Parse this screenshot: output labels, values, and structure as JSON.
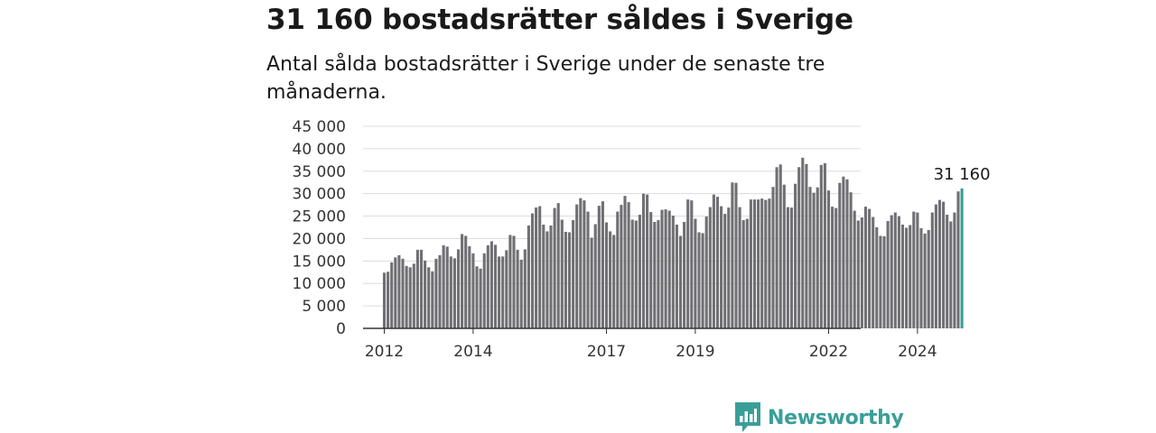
{
  "header": {
    "title": "31 160 bostadsrätter såldes i Sverige",
    "subtitle": "Antal sålda bostadsrätter i Sverige under de senaste tre månaderna."
  },
  "brand": {
    "name": "Newsworthy",
    "icon": "newsworthy-logo-icon",
    "color": "#3a9e98"
  },
  "chart_data": {
    "type": "bar",
    "title": "",
    "xlabel": "",
    "ylabel": "",
    "ylim": [
      0,
      45000
    ],
    "yticks": [
      0,
      5000,
      10000,
      15000,
      20000,
      25000,
      30000,
      35000,
      40000,
      45000
    ],
    "ytick_labels": [
      "0",
      "5 000",
      "10 000",
      "15 000",
      "20 000",
      "25 000",
      "30 000",
      "35 000",
      "40 000",
      "45 000"
    ],
    "x_start": "2012-01",
    "frequency": "monthly",
    "xtick_labels": [
      {
        "label": "2012",
        "date": "2012-01"
      },
      {
        "label": "2014",
        "date": "2014-01"
      },
      {
        "label": "2017",
        "date": "2017-01"
      },
      {
        "label": "2019",
        "date": "2019-01"
      },
      {
        "label": "2022",
        "date": "2022-01"
      },
      {
        "label": "2024",
        "date": "2024-01"
      }
    ],
    "grid": true,
    "bar_color": "#6f6f74",
    "highlight_color": "#3a9e98",
    "last_value_label": "31 160",
    "values": [
      12400,
      12600,
      14700,
      15800,
      16300,
      15500,
      13900,
      13600,
      14400,
      17500,
      17500,
      15100,
      13600,
      12700,
      15500,
      16300,
      18500,
      18200,
      16000,
      15600,
      17600,
      21000,
      20600,
      18300,
      16700,
      13800,
      13300,
      16700,
      18500,
      19400,
      18600,
      16000,
      16000,
      17400,
      20800,
      20600,
      17500,
      15300,
      17600,
      22900,
      25600,
      26900,
      27200,
      23100,
      21600,
      22900,
      26800,
      27900,
      24200,
      21500,
      21400,
      24100,
      27600,
      29000,
      28500,
      26000,
      20200,
      23200,
      27300,
      28300,
      23600,
      21600,
      20800,
      26000,
      27500,
      29500,
      28100,
      24200,
      24000,
      25300,
      30000,
      29800,
      25900,
      23700,
      24100,
      26400,
      26500,
      26200,
      25100,
      23100,
      20600,
      23700,
      28700,
      28500,
      24400,
      21400,
      21200,
      24900,
      27000,
      29800,
      29300,
      27200,
      25500,
      26900,
      32500,
      32400,
      27000,
      24100,
      24400,
      28700,
      28700,
      28700,
      28900,
      28600,
      28900,
      31500,
      35900,
      36500,
      32000,
      27000,
      26900,
      32200,
      35900,
      38000,
      36600,
      31500,
      30200,
      31400,
      36400,
      36800,
      30700,
      27100,
      26800,
      32400,
      33800,
      33200,
      30300,
      26200,
      24000,
      24700,
      27100,
      26600,
      24800,
      22500,
      20600,
      20500,
      23900,
      25200,
      25800,
      25000,
      23100,
      22400,
      23000,
      26000,
      25800,
      22300,
      21100,
      21900,
      25800,
      27600,
      28600,
      28200,
      25300,
      23800,
      25800,
      30500,
      31160
    ]
  }
}
